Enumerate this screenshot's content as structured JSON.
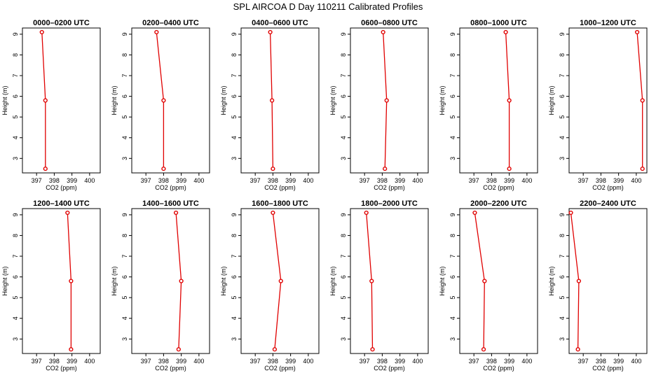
{
  "figure_title": "SPL AIRCOA D  Day 110211  Calibrated Profiles",
  "axis_labels": {
    "x": "CO2 (ppm)",
    "y": "Height (m)"
  },
  "chart_data": [
    {
      "type": "line",
      "title": "0000–0200 UTC",
      "xlabel": "CO2 (ppm)",
      "ylabel": "Height (m)",
      "xlim": [
        396.2,
        400.6
      ],
      "ylim": [
        2.3,
        9.3
      ],
      "x_ticks": [
        397,
        398,
        399,
        400
      ],
      "y_ticks": [
        3,
        4,
        5,
        6,
        7,
        8,
        9
      ],
      "grid": false,
      "x": [
        397.5,
        397.5,
        397.3
      ],
      "y": [
        2.5,
        5.8,
        9.1
      ]
    },
    {
      "type": "line",
      "title": "0200–0400 UTC",
      "xlabel": "CO2 (ppm)",
      "ylabel": "Height (m)",
      "xlim": [
        396.2,
        400.6
      ],
      "ylim": [
        2.3,
        9.3
      ],
      "x_ticks": [
        397,
        398,
        399,
        400
      ],
      "y_ticks": [
        3,
        4,
        5,
        6,
        7,
        8,
        9
      ],
      "grid": false,
      "x": [
        398.0,
        398.0,
        397.6
      ],
      "y": [
        2.5,
        5.8,
        9.1
      ]
    },
    {
      "type": "line",
      "title": "0400–0600 UTC",
      "xlabel": "CO2 (ppm)",
      "ylabel": "Height (m)",
      "xlim": [
        396.2,
        400.6
      ],
      "ylim": [
        2.3,
        9.3
      ],
      "x_ticks": [
        397,
        398,
        399,
        400
      ],
      "y_ticks": [
        3,
        4,
        5,
        6,
        7,
        8,
        9
      ],
      "grid": false,
      "x": [
        398.0,
        397.95,
        397.85
      ],
      "y": [
        2.5,
        5.8,
        9.1
      ]
    },
    {
      "type": "line",
      "title": "0600–0800 UTC",
      "xlabel": "CO2 (ppm)",
      "ylabel": "Height (m)",
      "xlim": [
        396.2,
        400.6
      ],
      "ylim": [
        2.3,
        9.3
      ],
      "x_ticks": [
        397,
        398,
        399,
        400
      ],
      "y_ticks": [
        3,
        4,
        5,
        6,
        7,
        8,
        9
      ],
      "grid": false,
      "x": [
        398.15,
        398.25,
        398.05
      ],
      "y": [
        2.5,
        5.8,
        9.1
      ]
    },
    {
      "type": "line",
      "title": "0800–1000 UTC",
      "xlabel": "CO2 (ppm)",
      "ylabel": "Height (m)",
      "xlim": [
        396.2,
        400.6
      ],
      "ylim": [
        2.3,
        9.3
      ],
      "x_ticks": [
        397,
        398,
        399,
        400
      ],
      "y_ticks": [
        3,
        4,
        5,
        6,
        7,
        8,
        9
      ],
      "grid": false,
      "x": [
        399.0,
        399.0,
        398.8
      ],
      "y": [
        2.5,
        5.8,
        9.1
      ]
    },
    {
      "type": "line",
      "title": "1000–1200 UTC",
      "xlabel": "CO2 (ppm)",
      "ylabel": "Height (m)",
      "xlim": [
        396.2,
        400.6
      ],
      "ylim": [
        2.3,
        9.3
      ],
      "x_ticks": [
        397,
        398,
        399,
        400
      ],
      "y_ticks": [
        3,
        4,
        5,
        6,
        7,
        8,
        9
      ],
      "grid": false,
      "x": [
        400.35,
        400.35,
        400.05
      ],
      "y": [
        2.5,
        5.8,
        9.1
      ]
    },
    {
      "type": "line",
      "title": "1200–1400 UTC",
      "xlabel": "CO2 (ppm)",
      "ylabel": "Height (m)",
      "xlim": [
        396.2,
        400.6
      ],
      "ylim": [
        2.3,
        9.3
      ],
      "x_ticks": [
        397,
        398,
        399,
        400
      ],
      "y_ticks": [
        3,
        4,
        5,
        6,
        7,
        8,
        9
      ],
      "grid": false,
      "x": [
        398.95,
        398.95,
        398.75
      ],
      "y": [
        2.5,
        5.8,
        9.1
      ]
    },
    {
      "type": "line",
      "title": "1400–1600 UTC",
      "xlabel": "CO2 (ppm)",
      "ylabel": "Height (m)",
      "xlim": [
        396.2,
        400.6
      ],
      "ylim": [
        2.3,
        9.3
      ],
      "x_ticks": [
        397,
        398,
        399,
        400
      ],
      "y_ticks": [
        3,
        4,
        5,
        6,
        7,
        8,
        9
      ],
      "grid": false,
      "x": [
        398.85,
        399.0,
        398.7
      ],
      "y": [
        2.5,
        5.8,
        9.1
      ]
    },
    {
      "type": "line",
      "title": "1600–1800 UTC",
      "xlabel": "CO2 (ppm)",
      "ylabel": "Height (m)",
      "xlim": [
        396.2,
        400.6
      ],
      "ylim": [
        2.3,
        9.3
      ],
      "x_ticks": [
        397,
        398,
        399,
        400
      ],
      "y_ticks": [
        3,
        4,
        5,
        6,
        7,
        8,
        9
      ],
      "grid": false,
      "x": [
        398.1,
        398.45,
        398.0
      ],
      "y": [
        2.5,
        5.8,
        9.1
      ]
    },
    {
      "type": "line",
      "title": "1800–2000 UTC",
      "xlabel": "CO2 (ppm)",
      "ylabel": "Height (m)",
      "xlim": [
        396.2,
        400.6
      ],
      "ylim": [
        2.3,
        9.3
      ],
      "x_ticks": [
        397,
        398,
        399,
        400
      ],
      "y_ticks": [
        3,
        4,
        5,
        6,
        7,
        8,
        9
      ],
      "grid": false,
      "x": [
        397.45,
        397.4,
        397.1
      ],
      "y": [
        2.5,
        5.8,
        9.1
      ]
    },
    {
      "type": "line",
      "title": "2000–2200 UTC",
      "xlabel": "CO2 (ppm)",
      "ylabel": "Height (m)",
      "xlim": [
        396.2,
        400.6
      ],
      "ylim": [
        2.3,
        9.3
      ],
      "x_ticks": [
        397,
        398,
        399,
        400
      ],
      "y_ticks": [
        3,
        4,
        5,
        6,
        7,
        8,
        9
      ],
      "grid": false,
      "x": [
        397.55,
        397.6,
        397.05
      ],
      "y": [
        2.5,
        5.8,
        9.1
      ]
    },
    {
      "type": "line",
      "title": "2200–2400 UTC",
      "xlabel": "CO2 (ppm)",
      "ylabel": "Height (m)",
      "xlim": [
        396.2,
        400.6
      ],
      "ylim": [
        2.3,
        9.3
      ],
      "x_ticks": [
        397,
        398,
        399,
        400
      ],
      "y_ticks": [
        3,
        4,
        5,
        6,
        7,
        8,
        9
      ],
      "grid": false,
      "x": [
        396.7,
        396.75,
        396.3
      ],
      "y": [
        2.5,
        5.8,
        9.1
      ]
    }
  ],
  "colors": {
    "series": "#e00000",
    "axes": "#000000",
    "background": "#ffffff"
  }
}
